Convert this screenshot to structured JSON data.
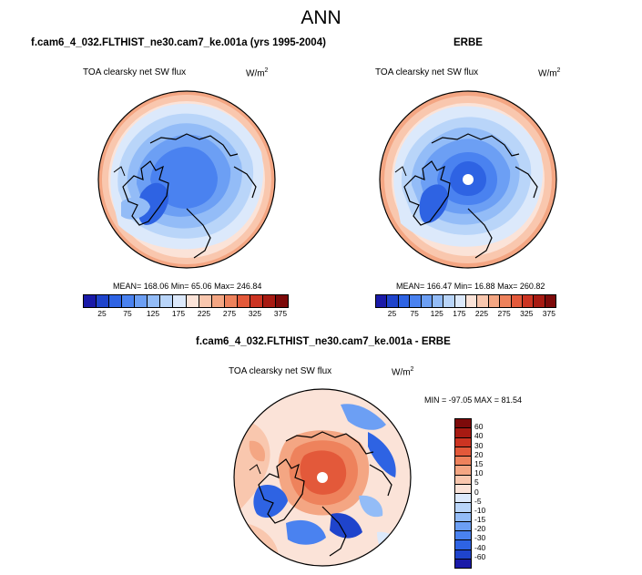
{
  "title": "ANN",
  "panels": {
    "model": {
      "heading": "f.cam6_4_032.FLTHIST_ne30.cam7_ke.001a (yrs 1995-2004)",
      "subtitle": "TOA clearsky net SW flux",
      "units_base": "W/m",
      "units_exp": "2",
      "stats": "MEAN= 168.06  Min=  65.06  Max= 246.84"
    },
    "obs": {
      "heading": "ERBE",
      "subtitle": "TOA clearsky net SW flux",
      "units_base": "W/m",
      "units_exp": "2",
      "stats": "MEAN= 166.47  Min=  16.88  Max= 260.82"
    },
    "diff": {
      "heading": "f.cam6_4_032.FLTHIST_ne30.cam7_ke.001a - ERBE",
      "subtitle": "TOA clearsky net SW flux",
      "units_base": "W/m",
      "units_exp": "2",
      "stats": "MIN = -97.05 MAX =  81.54"
    }
  },
  "colorbar_abs": {
    "colors": [
      "#1a1aa8",
      "#1f44cc",
      "#2e63e3",
      "#4a82f0",
      "#6c9ff4",
      "#93bcf7",
      "#b9d5f9",
      "#dce9fb",
      "#fbe3d8",
      "#f9c7ae",
      "#f4a683",
      "#ee825c",
      "#e3593a",
      "#cc3422",
      "#a71a12",
      "#7d0a0a"
    ],
    "labels": [
      "25",
      "75",
      "125",
      "175",
      "225",
      "275",
      "325",
      "375"
    ]
  },
  "colorbar_diff": {
    "colors": [
      "#7d0a0a",
      "#a71a12",
      "#cc3422",
      "#e3593a",
      "#ee825c",
      "#f4a683",
      "#f9c7ae",
      "#fbe3d8",
      "#dce9fb",
      "#b9d5f9",
      "#93bcf7",
      "#6c9ff4",
      "#4a82f0",
      "#2e63e3",
      "#1f44cc",
      "#1a1aa8"
    ],
    "labels": [
      "60",
      "40",
      "30",
      "20",
      "15",
      "10",
      "5",
      "0",
      "-5",
      "-10",
      "-15",
      "-20",
      "-30",
      "-40",
      "-60"
    ]
  }
}
